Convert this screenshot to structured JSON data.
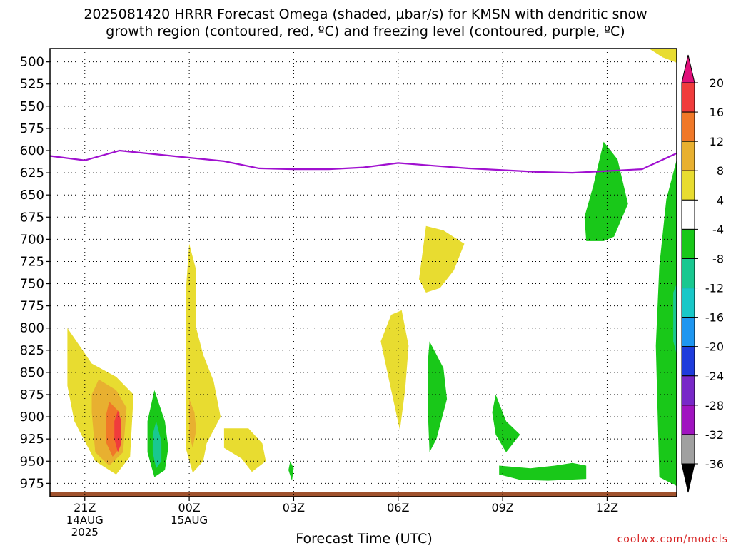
{
  "title": {
    "line1": "2025081420 HRRR Forecast Omega (shaded, μbar/s) for KMSN with dendritic snow",
    "line2": "growth region (contoured, red, ºC) and freezing level (contoured, purple, ºC)"
  },
  "xlabel": "Forecast Time (UTC)",
  "credit": "coolwx.com/models",
  "chart_data": {
    "type": "heatmap",
    "title": "2025081420 HRRR Forecast Omega (shaded, μbar/s) for KMSN with dendritic snow growth region (contoured, red, ºC) and freezing level (contoured, purple, ºC)",
    "xlabel": "Forecast Time (UTC)",
    "ylabel": "",
    "x_units": "forecast hours from 2025081420",
    "xlim": [
      0,
      18
    ],
    "ylim": [
      485,
      990
    ],
    "y_ticks": [
      500,
      525,
      550,
      575,
      600,
      625,
      650,
      675,
      700,
      725,
      750,
      775,
      800,
      825,
      850,
      875,
      900,
      925,
      950,
      975
    ],
    "x_ticks": [
      {
        "x": 1,
        "label": [
          "21Z",
          "14AUG",
          "2025"
        ]
      },
      {
        "x": 4,
        "label": [
          "00Z",
          "15AUG"
        ]
      },
      {
        "x": 7,
        "label": [
          "03Z"
        ]
      },
      {
        "x": 10,
        "label": [
          "06Z"
        ]
      },
      {
        "x": 13,
        "label": [
          "09Z"
        ]
      },
      {
        "x": 16,
        "label": [
          "12Z"
        ]
      }
    ],
    "grid": true,
    "colorbar": {
      "labels": [
        "20",
        "16",
        "12",
        "8",
        "4",
        "-4",
        "-8",
        "-12",
        "-16",
        "-20",
        "-24",
        "-28",
        "-32",
        "-36"
      ],
      "bands": [
        "#e0107a",
        "#f03c3c",
        "#f07828",
        "#e8b030",
        "#e8dc30",
        "#ffffff",
        "#19c819",
        "#19c890",
        "#19c8c8",
        "#1e96f0",
        "#1e3cdc",
        "#7828c8",
        "#a014c0",
        "#a0a0a0"
      ]
    },
    "freezing_level": {
      "color": "#a010d0",
      "x": [
        0,
        1,
        2,
        3,
        4,
        5,
        6,
        7,
        8,
        9,
        10,
        11,
        12,
        13,
        14,
        15,
        16,
        17,
        18
      ],
      "y": [
        606,
        611,
        600,
        604,
        608,
        612,
        620,
        621,
        621,
        619,
        614,
        617,
        620,
        622,
        624,
        625,
        623,
        621,
        603
      ]
    },
    "omega_regions": [
      {
        "color": "#e8dc30",
        "points": [
          [
            0.5,
            800
          ],
          [
            1.2,
            840
          ],
          [
            1.9,
            855
          ],
          [
            2.4,
            875
          ],
          [
            2.3,
            945
          ],
          [
            1.9,
            965
          ],
          [
            1.3,
            950
          ],
          [
            0.7,
            905
          ],
          [
            0.5,
            865
          ]
        ]
      },
      {
        "color": "#e8b030",
        "points": [
          [
            1.4,
            858
          ],
          [
            1.9,
            870
          ],
          [
            2.2,
            890
          ],
          [
            2.1,
            940
          ],
          [
            1.7,
            955
          ],
          [
            1.3,
            940
          ],
          [
            1.2,
            895
          ],
          [
            1.2,
            875
          ]
        ]
      },
      {
        "color": "#f07828",
        "points": [
          [
            1.7,
            883
          ],
          [
            2.0,
            895
          ],
          [
            2.0,
            935
          ],
          [
            1.8,
            945
          ],
          [
            1.6,
            928
          ],
          [
            1.6,
            900
          ]
        ]
      },
      {
        "color": "#f03c3c",
        "points": [
          [
            1.95,
            893
          ],
          [
            2.05,
            905
          ],
          [
            2.05,
            930
          ],
          [
            1.95,
            940
          ],
          [
            1.85,
            925
          ],
          [
            1.85,
            905
          ]
        ]
      },
      {
        "color": "#19c819",
        "points": [
          [
            3.0,
            870
          ],
          [
            3.3,
            905
          ],
          [
            3.4,
            935
          ],
          [
            3.3,
            960
          ],
          [
            3.0,
            968
          ],
          [
            2.8,
            940
          ],
          [
            2.8,
            905
          ]
        ]
      },
      {
        "color": "#19c890",
        "points": [
          [
            3.05,
            905
          ],
          [
            3.2,
            928
          ],
          [
            3.2,
            950
          ],
          [
            3.05,
            958
          ],
          [
            2.95,
            940
          ],
          [
            2.95,
            920
          ]
        ]
      },
      {
        "color": "#e8dc30",
        "points": [
          [
            4.0,
            705
          ],
          [
            4.2,
            735
          ],
          [
            4.2,
            800
          ],
          [
            4.4,
            830
          ],
          [
            4.7,
            860
          ],
          [
            4.9,
            900
          ],
          [
            4.5,
            930
          ],
          [
            4.4,
            950
          ],
          [
            4.1,
            963
          ],
          [
            3.9,
            935
          ],
          [
            3.9,
            850
          ],
          [
            3.9,
            760
          ]
        ]
      },
      {
        "color": "#e8b030",
        "points": [
          [
            4.0,
            880
          ],
          [
            4.15,
            895
          ],
          [
            4.2,
            915
          ],
          [
            4.1,
            935
          ],
          [
            4.0,
            920
          ]
        ]
      },
      {
        "color": "#e8dc30",
        "points": [
          [
            5.0,
            913
          ],
          [
            5.7,
            913
          ],
          [
            6.1,
            930
          ],
          [
            6.2,
            950
          ],
          [
            5.8,
            962
          ],
          [
            5.5,
            947
          ],
          [
            5.0,
            935
          ]
        ]
      },
      {
        "color": "#19c819",
        "points": [
          [
            6.9,
            950
          ],
          [
            7.0,
            958
          ],
          [
            6.95,
            972
          ],
          [
            6.85,
            960
          ]
        ]
      },
      {
        "color": "#e8dc30",
        "points": [
          [
            9.8,
            785
          ],
          [
            10.1,
            780
          ],
          [
            10.3,
            820
          ],
          [
            10.2,
            870
          ],
          [
            10.05,
            915
          ],
          [
            9.8,
            870
          ],
          [
            9.5,
            815
          ]
        ]
      },
      {
        "color": "#e8dc30",
        "points": [
          [
            10.8,
            685
          ],
          [
            11.3,
            690
          ],
          [
            11.9,
            705
          ],
          [
            11.6,
            735
          ],
          [
            11.2,
            755
          ],
          [
            10.8,
            760
          ],
          [
            10.6,
            745
          ],
          [
            10.7,
            715
          ]
        ]
      },
      {
        "color": "#19c819",
        "points": [
          [
            10.9,
            815
          ],
          [
            11.3,
            845
          ],
          [
            11.4,
            880
          ],
          [
            11.1,
            925
          ],
          [
            10.9,
            940
          ],
          [
            10.85,
            890
          ],
          [
            10.85,
            840
          ]
        ]
      },
      {
        "color": "#19c819",
        "points": [
          [
            12.8,
            875
          ],
          [
            13.1,
            905
          ],
          [
            13.5,
            920
          ],
          [
            13.1,
            940
          ],
          [
            12.8,
            920
          ],
          [
            12.7,
            895
          ]
        ]
      },
      {
        "color": "#19c819",
        "points": [
          [
            12.9,
            955
          ],
          [
            13.8,
            958
          ],
          [
            14.5,
            955
          ],
          [
            15.0,
            952
          ],
          [
            15.4,
            955
          ],
          [
            15.4,
            970
          ],
          [
            14.3,
            972
          ],
          [
            13.5,
            971
          ],
          [
            12.9,
            965
          ]
        ]
      },
      {
        "color": "#19c819",
        "points": [
          [
            15.9,
            590
          ],
          [
            16.3,
            610
          ],
          [
            16.6,
            660
          ],
          [
            16.2,
            697
          ],
          [
            15.9,
            702
          ],
          [
            15.4,
            702
          ],
          [
            15.35,
            675
          ],
          [
            15.6,
            640
          ]
        ]
      },
      {
        "color": "#19c819",
        "points": [
          [
            17.7,
            655
          ],
          [
            18.0,
            610
          ],
          [
            18.0,
            978
          ],
          [
            17.5,
            968
          ],
          [
            17.4,
            820
          ],
          [
            17.5,
            730
          ]
        ]
      },
      {
        "color": "#19c890",
        "points": [
          [
            17.9,
            760
          ],
          [
            18.0,
            750
          ],
          [
            18.0,
            830
          ],
          [
            17.9,
            815
          ]
        ]
      },
      {
        "color": "#e8dc30",
        "points": [
          [
            17.2,
            485
          ],
          [
            18.0,
            485
          ],
          [
            18.0,
            501
          ],
          [
            17.6,
            495
          ]
        ]
      }
    ],
    "ground_strip": {
      "color": "#a0522d",
      "y": 990
    }
  }
}
